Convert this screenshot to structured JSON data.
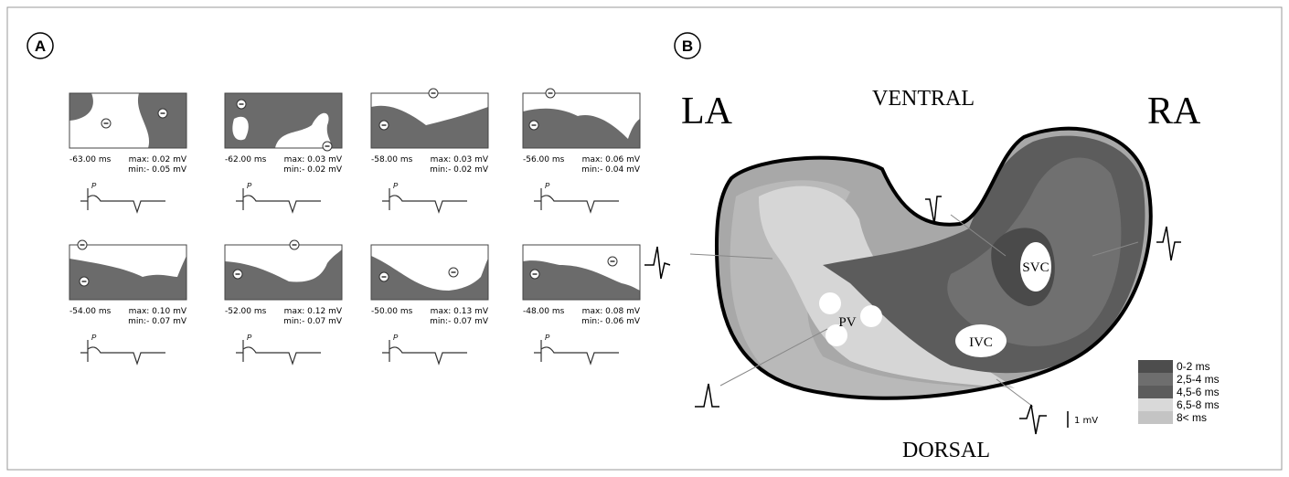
{
  "panel_a": {
    "label": "A",
    "maps": [
      {
        "time": "-63.00 ms",
        "max": "max: 0.02 mV",
        "min": "min:- 0.05 mV",
        "wave": "P"
      },
      {
        "time": "-62.00 ms",
        "max": "max: 0.03 mV",
        "min": "min:- 0.02 mV",
        "wave": "P"
      },
      {
        "time": "-58.00 ms",
        "max": "max: 0.03 mV",
        "min": "min:- 0.02 mV",
        "wave": "P"
      },
      {
        "time": "-56.00 ms",
        "max": "max: 0.06 mV",
        "min": "min:- 0.04 mV",
        "wave": "P"
      },
      {
        "time": "-54.00 ms",
        "max": "max: 0.10 mV",
        "min": "min:- 0.07 mV",
        "wave": "P"
      },
      {
        "time": "-52.00 ms",
        "max": "max: 0.12 mV",
        "min": "min:- 0.07 mV",
        "wave": "P"
      },
      {
        "time": "-50.00 ms",
        "max": "max: 0.13 mV",
        "min": "min:- 0.07 mV",
        "wave": "P"
      },
      {
        "time": "-48.00 ms",
        "max": "max: 0.08 mV",
        "min": "min:- 0.06 mV",
        "wave": "P"
      }
    ]
  },
  "panel_b": {
    "label": "B",
    "left": "LA",
    "right": "RA",
    "top": "VENTRAL",
    "bottom": "DORSAL",
    "svc": "SVC",
    "ivc": "IVC",
    "pv": "PV",
    "scale": "1 mV",
    "legend": [
      {
        "label": "0-2 ms",
        "color": "#4d4d4d"
      },
      {
        "label": "2,5-4 ms",
        "color": "#6e6e6e"
      },
      {
        "label": "4,5-6 ms",
        "color": "#5c5c5c"
      },
      {
        "label": "6,5-8 ms",
        "color": "#d9d9d9"
      },
      {
        "label": "8< ms",
        "color": "#c4c4c4"
      }
    ]
  }
}
